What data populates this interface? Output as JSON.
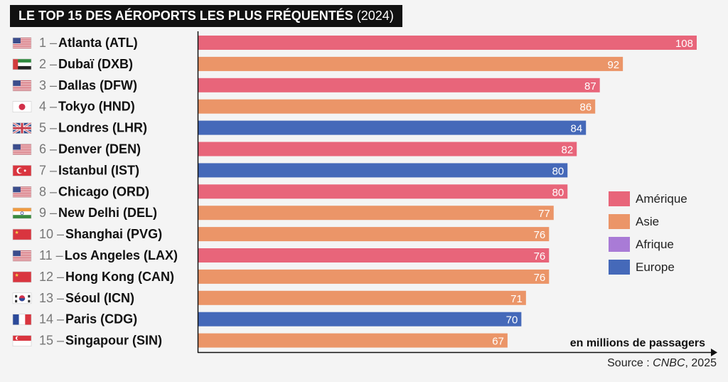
{
  "header": {
    "title": "LE TOP 15 DES AÉROPORTS LES PLUS FRÉQUENTÉS",
    "year": "(2024)"
  },
  "colors": {
    "Amérique": "#e8657a",
    "Asie": "#eb9568",
    "Afrique": "#a97bd6",
    "Europe": "#4569b9"
  },
  "legend": {
    "items": [
      "Amérique",
      "Asie",
      "Afrique",
      "Europe"
    ]
  },
  "unit_label": "en millions de passagers",
  "source": {
    "prefix": "Source :",
    "name": "CNBC",
    "suffix": ", 2025"
  },
  "chart_data": {
    "type": "bar",
    "orientation": "horizontal",
    "title": "LE TOP 15 DES AÉROPORTS LES PLUS FRÉQUENTÉS (2024)",
    "xlabel": "en millions de passagers",
    "xlim": [
      0,
      108
    ],
    "categories": [
      {
        "rank": "1",
        "name": "Atlanta (ATL)",
        "country": "us",
        "flag": "us-flag-icon",
        "region": "Amérique",
        "value": 108
      },
      {
        "rank": "2",
        "name": "Dubaï (DXB)",
        "country": "ae",
        "flag": "uae-flag-icon",
        "region": "Asie",
        "value": 92
      },
      {
        "rank": "3",
        "name": "Dallas (DFW)",
        "country": "us",
        "flag": "us-flag-icon",
        "region": "Amérique",
        "value": 87
      },
      {
        "rank": "4",
        "name": "Tokyo (HND)",
        "country": "jp",
        "flag": "japan-flag-icon",
        "region": "Asie",
        "value": 86
      },
      {
        "rank": "5",
        "name": "Londres (LHR)",
        "country": "gb",
        "flag": "uk-flag-icon",
        "region": "Europe",
        "value": 84
      },
      {
        "rank": "6",
        "name": "Denver (DEN)",
        "country": "us",
        "flag": "us-flag-icon",
        "region": "Amérique",
        "value": 82
      },
      {
        "rank": "7",
        "name": "Istanbul (IST)",
        "country": "tr",
        "flag": "turkey-flag-icon",
        "region": "Europe",
        "value": 80
      },
      {
        "rank": "8",
        "name": "Chicago (ORD)",
        "country": "us",
        "flag": "us-flag-icon",
        "region": "Amérique",
        "value": 80
      },
      {
        "rank": "9",
        "name": "New Delhi (DEL)",
        "country": "in",
        "flag": "india-flag-icon",
        "region": "Asie",
        "value": 77
      },
      {
        "rank": "10",
        "name": "Shanghai (PVG)",
        "country": "cn",
        "flag": "china-flag-icon",
        "region": "Asie",
        "value": 76
      },
      {
        "rank": "11",
        "name": "Los Angeles (LAX)",
        "country": "us",
        "flag": "us-flag-icon",
        "region": "Amérique",
        "value": 76
      },
      {
        "rank": "12",
        "name": "Hong Kong (CAN)",
        "country": "cn",
        "flag": "china-flag-icon",
        "region": "Asie",
        "value": 76
      },
      {
        "rank": "13",
        "name": "Séoul (ICN)",
        "country": "kr",
        "flag": "korea-flag-icon",
        "region": "Asie",
        "value": 71
      },
      {
        "rank": "14",
        "name": "Paris (CDG)",
        "country": "fr",
        "flag": "france-flag-icon",
        "region": "Europe",
        "value": 70
      },
      {
        "rank": "15",
        "name": "Singapour (SIN)",
        "country": "sg",
        "flag": "singapore-flag-icon",
        "region": "Asie",
        "value": 67
      }
    ]
  }
}
